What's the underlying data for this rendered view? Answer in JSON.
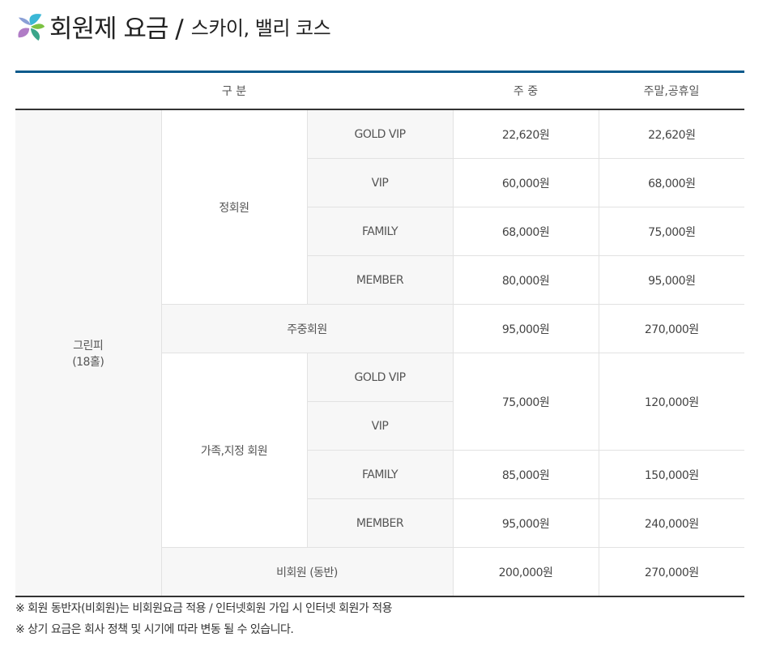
{
  "header": {
    "title": "회원제 요금 /",
    "subtitle": "스카이, 밸리 코스",
    "logo": "flower-logo"
  },
  "table": {
    "headers": [
      "구 분",
      "주 중",
      "주말,공휴일"
    ],
    "course": "그린피\n(18홀)",
    "groups": {
      "regular": "정회원",
      "weekday": "주중회원",
      "family": "가족,지정 회원",
      "nonmember": "비회원 (동반)"
    },
    "regular": [
      {
        "tier": "GOLD VIP",
        "weekday": "22,620원",
        "weekend": "22,620원"
      },
      {
        "tier": "VIP",
        "weekday": "60,000원",
        "weekend": "68,000원"
      },
      {
        "tier": "FAMILY",
        "weekday": "68,000원",
        "weekend": "75,000원"
      },
      {
        "tier": "MEMBER",
        "weekday": "80,000원",
        "weekend": "95,000원"
      }
    ],
    "weekday_member": {
      "weekday": "95,000원",
      "weekend": "270,000원"
    },
    "family": [
      {
        "tier": "GOLD VIP"
      },
      {
        "tier": "VIP"
      },
      {
        "tier": "FAMILY",
        "weekday": "85,000원",
        "weekend": "150,000원"
      },
      {
        "tier": "MEMBER",
        "weekday": "95,000원",
        "weekend": "240,000원"
      }
    ],
    "family_vip_shared": {
      "weekday": "75,000원",
      "weekend": "120,000원"
    },
    "nonmember": {
      "weekday": "200,000원",
      "weekend": "270,000원"
    }
  },
  "notes": [
    "※ 회원 동반자(비회원)는 비회원요금 적용 / 인터넷회원 가입 시 인터넷 회원가 적용",
    "※ 상기 요금은 회사 정책 및 시기에 따라 변동 될 수 있습니다."
  ]
}
